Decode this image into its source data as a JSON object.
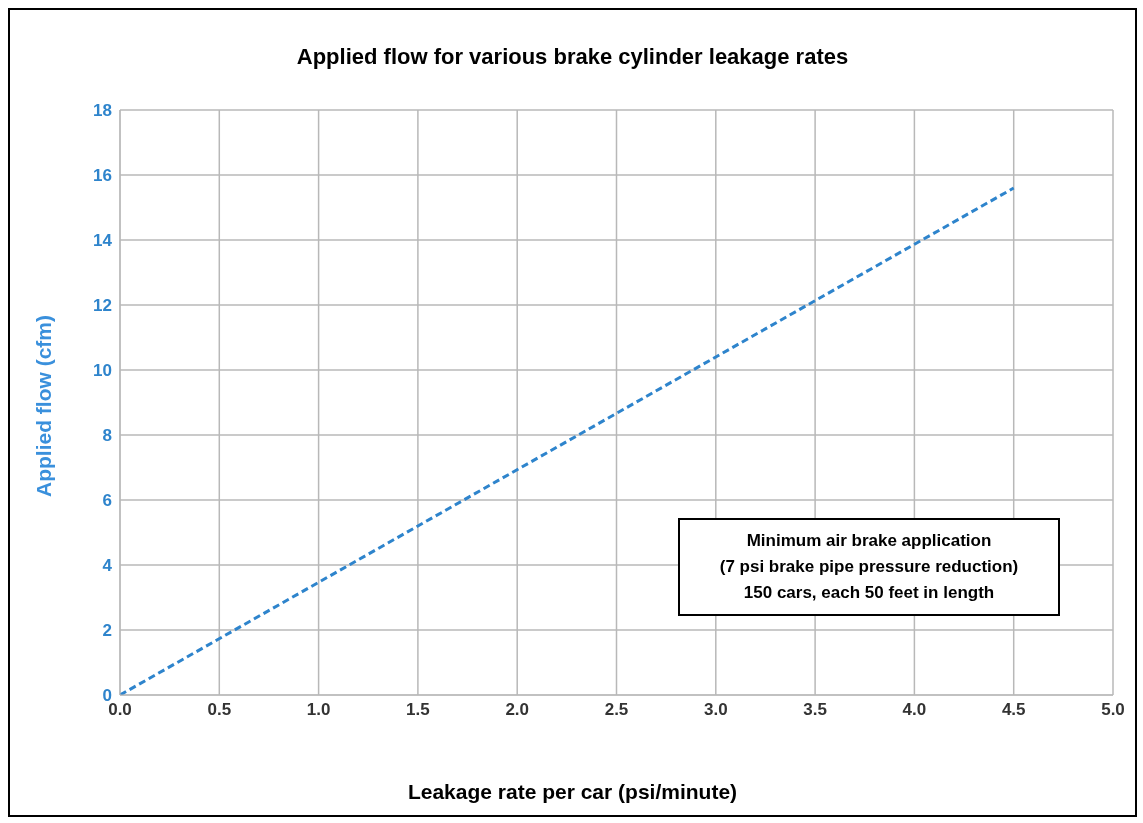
{
  "chart_data": {
    "type": "line",
    "title": "Applied flow for various brake cylinder leakage rates",
    "xlabel": "Leakage rate per car (psi/minute)",
    "ylabel": "Applied flow (cfm)",
    "x": [
      0,
      4.5
    ],
    "series": [
      {
        "color": "#2e84cc",
        "values": [
          0,
          15.6
        ]
      }
    ],
    "xlim": [
      0,
      5
    ],
    "xticks": [
      {
        "value": 0,
        "label": "0.0"
      },
      {
        "value": 0.5,
        "label": "0.5"
      },
      {
        "value": 1,
        "label": "1.0"
      },
      {
        "value": 1.5,
        "label": "1.5"
      },
      {
        "value": 2,
        "label": "2.0"
      },
      {
        "value": 2.5,
        "label": "2.5"
      },
      {
        "value": 3,
        "label": "3.0"
      },
      {
        "value": 3.5,
        "label": "3.5"
      },
      {
        "value": 4,
        "label": "4.0"
      },
      {
        "value": 4.5,
        "label": "4.5"
      },
      {
        "value": 5,
        "label": "5.0"
      }
    ],
    "ylim": [
      0,
      18
    ],
    "yticks": [
      0,
      2,
      4,
      6,
      8,
      10,
      12,
      14,
      16,
      18
    ],
    "grid": true,
    "line_style": "dashed",
    "annotations": [
      "Minimum air brake application\n(7 psi brake pipe pressure reduction)\n150 cars, each 50 feet in length"
    ]
  }
}
